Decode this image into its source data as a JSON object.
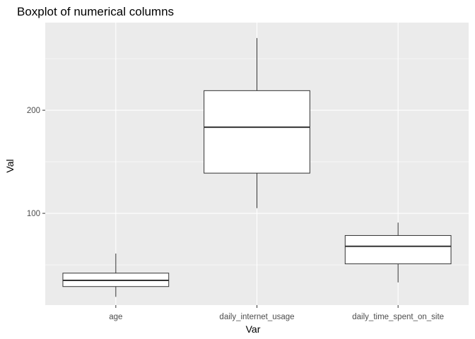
{
  "chart_data": {
    "type": "boxplot",
    "title": "Boxplot of numerical columns",
    "xlabel": "Var",
    "ylabel": "Val",
    "categories": [
      "age",
      "daily_internet_usage",
      "daily_time_spent_on_site"
    ],
    "boxes": [
      {
        "category": "age",
        "min": 19,
        "q1": 29,
        "median": 35,
        "q3": 42,
        "max": 61
      },
      {
        "category": "daily_internet_usage",
        "min": 105,
        "q1": 139,
        "median": 183.5,
        "q3": 219,
        "max": 270
      },
      {
        "category": "daily_time_spent_on_site",
        "min": 33,
        "q1": 51,
        "median": 68,
        "q3": 78.5,
        "max": 91
      }
    ],
    "ylim": [
      11,
      285
    ],
    "y_ticks": [
      100,
      200
    ],
    "y_minor_ticks": [
      50,
      150,
      250
    ],
    "grid": true,
    "panel_background": "#ebebeb",
    "grid_color": "#ffffff",
    "box_fill": "#ffffff",
    "box_stroke": "#333333"
  }
}
